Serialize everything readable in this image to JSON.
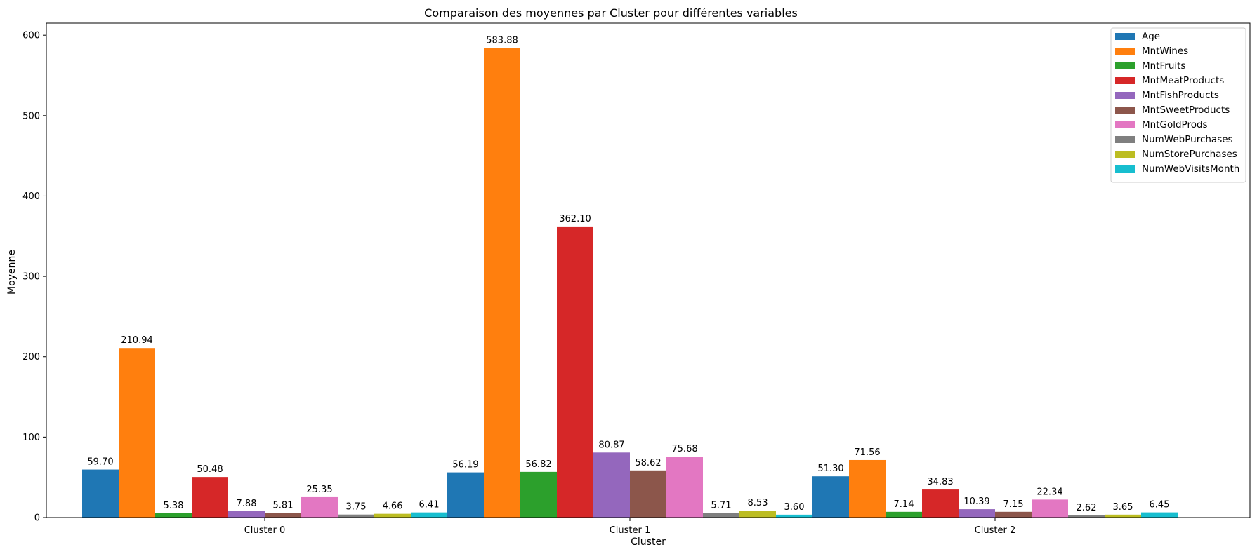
{
  "chart_data": {
    "type": "bar",
    "title": "Comparaison des moyennes par Cluster pour différentes variables",
    "xlabel": "Cluster",
    "ylabel": "Moyenne",
    "ylim": [
      0,
      615
    ],
    "yticks": [
      0,
      100,
      200,
      300,
      400,
      500,
      600
    ],
    "categories": [
      "Cluster 0",
      "Cluster 1",
      "Cluster 2"
    ],
    "legend_position": "top-right",
    "grid": false,
    "series": [
      {
        "name": "Age",
        "color": "#1f77b4",
        "values": [
          59.7,
          56.19,
          51.3
        ],
        "labels": [
          "59.70",
          "56.19",
          "51.30"
        ]
      },
      {
        "name": "MntWines",
        "color": "#ff7f0e",
        "values": [
          210.94,
          583.88,
          71.56
        ],
        "labels": [
          "210.94",
          "583.88",
          "71.56"
        ]
      },
      {
        "name": "MntFruits",
        "color": "#2ca02c",
        "values": [
          5.38,
          56.82,
          7.14
        ],
        "labels": [
          "5.38",
          "56.82",
          "7.14"
        ]
      },
      {
        "name": "MntMeatProducts",
        "color": "#d62728",
        "values": [
          50.48,
          362.1,
          34.83
        ],
        "labels": [
          "50.48",
          "362.10",
          "34.83"
        ]
      },
      {
        "name": "MntFishProducts",
        "color": "#9467bd",
        "values": [
          7.88,
          80.87,
          10.39
        ],
        "labels": [
          "7.88",
          "80.87",
          "10.39"
        ]
      },
      {
        "name": "MntSweetProducts",
        "color": "#8c564b",
        "values": [
          5.81,
          58.62,
          7.15
        ],
        "labels": [
          "5.81",
          "58.62",
          "7.15"
        ]
      },
      {
        "name": "MntGoldProds",
        "color": "#e377c2",
        "values": [
          25.35,
          75.68,
          22.34
        ],
        "labels": [
          "25.35",
          "75.68",
          "22.34"
        ]
      },
      {
        "name": "NumWebPurchases",
        "color": "#7f7f7f",
        "values": [
          3.75,
          5.71,
          2.62
        ],
        "labels": [
          "3.75",
          "5.71",
          "2.62"
        ]
      },
      {
        "name": "NumStorePurchases",
        "color": "#bcbd22",
        "values": [
          4.66,
          8.53,
          3.65
        ],
        "labels": [
          "4.66",
          "8.53",
          "3.65"
        ]
      },
      {
        "name": "NumWebVisitsMonth",
        "color": "#17becf",
        "values": [
          6.41,
          3.6,
          6.45
        ],
        "labels": [
          "6.41",
          "3.60",
          "6.45"
        ]
      }
    ]
  }
}
